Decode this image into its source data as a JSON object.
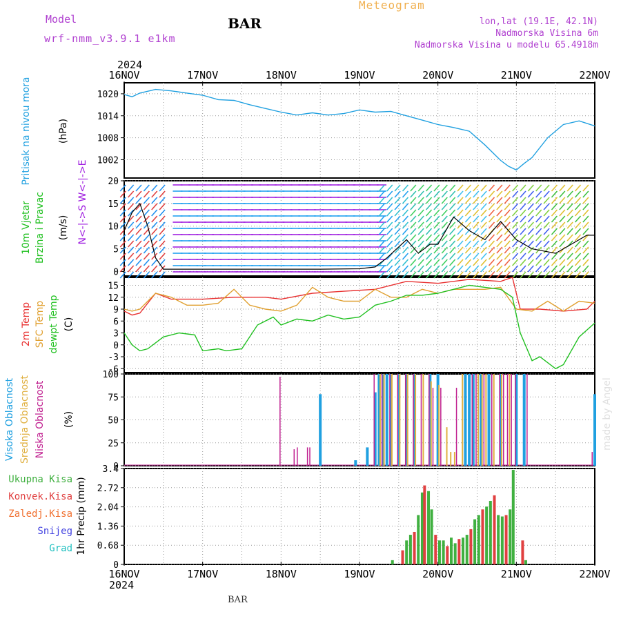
{
  "header": {
    "title": "Meteogram",
    "model_label": "Model",
    "model_name": "wrf-nmm_v3.9.1 e1km",
    "station": "BAR",
    "lonlat": "lon,lat (19.1E, 42.1N)",
    "elevation": "Nadmorska Visina 6m",
    "elevation_model": "Nadmorska Visina u modelu 65.4918m",
    "credit": "made by Angel",
    "footer_station": "BAR"
  },
  "time_axis": {
    "year": "2024",
    "labels": [
      "16NOV",
      "17NOV",
      "18NOV",
      "19NOV",
      "20NOV",
      "21NOV",
      "22NOV"
    ],
    "start_day": 16,
    "end_day": 22
  },
  "colors": {
    "pressure": "#20a0e0",
    "temp": "#e83030",
    "sfc_temp": "#e0a030",
    "dewpt": "#20c020",
    "high_cloud": "#20a0e0",
    "mid_cloud": "#e0b040",
    "low_cloud": "#c02090",
    "precip_total": "#40b040",
    "precip_conv": "#e04040",
    "snow": "#4040e0",
    "hail": "#20c0c0",
    "wind_purple": "#a020e0"
  },
  "panels": {
    "pressure": {
      "label": "Pritisak na nivou mora",
      "unit": "(hPa)",
      "ticks": [
        "1020",
        "1014",
        "1008",
        "1002"
      ]
    },
    "wind": {
      "label1": "10m Vjetar",
      "label2": "Brzina i Pravac",
      "unit": "(m/s)",
      "ticks": [
        "20",
        "15",
        "10",
        "5",
        "0"
      ],
      "compass": "N<-|->S W<-|->E"
    },
    "temp": {
      "label1": "2m Temp",
      "label2": "SFC Temp",
      "label3": "dewpt Temp",
      "unit": "(C)",
      "ticks": [
        "15",
        "12",
        "9",
        "6",
        "3",
        "0",
        "-3",
        "-6"
      ]
    },
    "cloud": {
      "label1": "Visoka Oblacnost",
      "label2": "Srednja Oblacnost",
      "label3": "Niska Oblacnost",
      "unit": "(%)",
      "ticks": [
        "100",
        "75",
        "50",
        "25",
        "0"
      ]
    },
    "precip": {
      "label": "1hr Precip (mm)",
      "ticks": [
        "3.4",
        "2.72",
        "2.04",
        "1.36",
        "0.68",
        "0"
      ],
      "legend": [
        "Ukupna Kisa",
        "Konvek.Kisa",
        "Zaledj.Kisa",
        "Snijeg",
        "Grad"
      ]
    }
  },
  "chart_data": [
    {
      "type": "line",
      "title": "Pritisak na nivou mora",
      "ylabel": "(hPa)",
      "ylim": [
        997,
        1023
      ],
      "x_unit": "day of November 2024",
      "series": [
        {
          "name": "Pritisak na nivou mora",
          "x": [
            16.0,
            16.1,
            16.2,
            16.4,
            16.6,
            16.8,
            17.0,
            17.2,
            17.4,
            17.6,
            17.8,
            18.0,
            18.2,
            18.4,
            18.6,
            18.8,
            19.0,
            19.2,
            19.4,
            19.6,
            19.8,
            20.0,
            20.2,
            20.4,
            20.6,
            20.8,
            20.9,
            21.0,
            21.1,
            21.2,
            21.4,
            21.6,
            21.8,
            22.0
          ],
          "y": [
            1019.8,
            1019.2,
            1020.2,
            1021.2,
            1020.8,
            1020.2,
            1019.6,
            1018.4,
            1018.2,
            1017.0,
            1016.0,
            1015.0,
            1014.2,
            1014.8,
            1014.2,
            1014.6,
            1015.6,
            1015.0,
            1015.2,
            1014.0,
            1012.8,
            1011.6,
            1010.8,
            1009.8,
            1006.0,
            1001.8,
            1000.2,
            999.2,
            1001.0,
            1002.6,
            1008.0,
            1011.6,
            1012.6,
            1011.2
          ]
        }
      ]
    },
    {
      "type": "line",
      "title": "10m Vjetar Brzina i Pravac",
      "ylabel": "(m/s)",
      "ylim": [
        -1,
        20
      ],
      "x_unit": "day of November 2024",
      "series": [
        {
          "name": "10m Vjetar",
          "x": [
            16.0,
            16.1,
            16.2,
            16.3,
            16.4,
            16.5,
            17.0,
            17.5,
            18.0,
            18.5,
            19.0,
            19.2,
            19.35,
            19.6,
            19.75,
            19.9,
            20.0,
            20.2,
            20.4,
            20.6,
            20.8,
            21.0,
            21.2,
            21.5,
            21.7,
            21.9,
            22.0
          ],
          "y": [
            9,
            13,
            15,
            10,
            3,
            0.5,
            0.5,
            0.5,
            0.5,
            0.5,
            0.6,
            1,
            3,
            7,
            4,
            6,
            6,
            12,
            9,
            7,
            11,
            7,
            5,
            4,
            6,
            8,
            8
          ]
        }
      ]
    },
    {
      "type": "line",
      "title": "2m Temp / SFC Temp / dewpt Temp",
      "ylabel": "(C)",
      "ylim": [
        -7,
        17
      ],
      "x_unit": "day of November 2024",
      "series": [
        {
          "name": "2m Temp",
          "x": [
            16.0,
            16.1,
            16.2,
            16.4,
            16.6,
            17.0,
            17.4,
            17.8,
            18.0,
            18.4,
            18.8,
            19.2,
            19.6,
            20.0,
            20.4,
            20.8,
            20.95,
            21.05,
            21.3,
            21.6,
            21.9,
            22.0
          ],
          "y": [
            8.5,
            7.5,
            8,
            13,
            11.5,
            11.5,
            12,
            12,
            11.5,
            13,
            13.5,
            14,
            16,
            15.5,
            16.5,
            16,
            17,
            9,
            9,
            8.5,
            9,
            11
          ]
        },
        {
          "name": "SFC Temp",
          "x": [
            16.0,
            16.1,
            16.2,
            16.4,
            16.6,
            16.8,
            17.0,
            17.2,
            17.4,
            17.6,
            17.8,
            18.0,
            18.2,
            18.4,
            18.6,
            18.8,
            19.0,
            19.2,
            19.4,
            19.6,
            19.8,
            20.0,
            20.2,
            20.4,
            20.6,
            20.8,
            21.0,
            21.2,
            21.4,
            21.6,
            21.8,
            22.0
          ],
          "y": [
            9,
            8.5,
            9,
            13,
            12,
            10,
            10,
            10.5,
            14,
            10,
            9,
            8.5,
            10,
            14.5,
            12,
            11,
            11,
            14,
            12,
            12,
            14,
            13,
            14,
            14,
            14,
            14.5,
            9,
            8.5,
            11,
            8.5,
            11,
            10.5
          ]
        },
        {
          "name": "dewpt Temp",
          "x": [
            16.0,
            16.1,
            16.2,
            16.3,
            16.5,
            16.7,
            16.9,
            17.0,
            17.2,
            17.3,
            17.5,
            17.7,
            17.9,
            18.0,
            18.2,
            18.4,
            18.6,
            18.8,
            19.0,
            19.2,
            19.4,
            19.6,
            19.8,
            20.0,
            20.2,
            20.4,
            20.6,
            20.8,
            20.95,
            21.05,
            21.2,
            21.3,
            21.5,
            21.6,
            21.8,
            22.0
          ],
          "y": [
            3,
            0,
            -1.5,
            -1,
            2,
            3,
            2.5,
            -1.5,
            -1,
            -1.5,
            -1,
            5,
            7,
            5,
            6.5,
            6,
            7.5,
            6.5,
            7,
            10,
            11,
            12.5,
            12.5,
            13,
            14,
            15,
            14.5,
            14,
            12,
            3,
            -4,
            -3,
            -6,
            -5,
            2,
            5.5
          ]
        }
      ]
    },
    {
      "type": "bar",
      "title": "Oblacnost",
      "ylabel": "(%)",
      "ylim": [
        0,
        100
      ],
      "x_unit": "day of November 2024",
      "series": [
        {
          "name": "Visoka Oblacnost",
          "x": [
            18.5,
            18.95,
            19.1,
            19.2,
            19.25,
            19.3,
            19.35,
            19.4,
            19.5,
            19.6,
            19.7,
            19.9,
            20.0,
            20.35,
            20.4,
            20.45,
            20.55,
            20.65,
            20.8,
            21.0,
            21.1,
            22.0
          ],
          "y": [
            78,
            6,
            20,
            80,
            100,
            100,
            100,
            100,
            100,
            100,
            100,
            100,
            100,
            100,
            100,
            100,
            100,
            100,
            100,
            100,
            100,
            78
          ]
        },
        {
          "name": "Srednja Oblacnost",
          "x": [
            19.25,
            19.3,
            19.4,
            19.5,
            19.6,
            19.7,
            19.8,
            19.9,
            20.0,
            20.1,
            20.15,
            20.2,
            20.3,
            20.5,
            20.55,
            20.6,
            20.7,
            20.8,
            20.9
          ],
          "y": [
            100,
            100,
            100,
            100,
            100,
            100,
            100,
            92,
            88,
            42,
            15,
            15,
            100,
            100,
            100,
            100,
            100,
            100,
            100
          ]
        },
        {
          "name": "Niska Oblacnost",
          "x": [
            18.0,
            18.18,
            18.22,
            18.35,
            18.38,
            19.2,
            19.3,
            19.4,
            19.5,
            19.6,
            19.7,
            19.8,
            19.9,
            19.95,
            20.05,
            20.25,
            20.45,
            20.5,
            20.6,
            20.7,
            20.8,
            20.85,
            20.9,
            20.95,
            21.0,
            21.15,
            21.98
          ],
          "y": [
            97,
            18,
            20,
            20,
            20,
            100,
            100,
            100,
            100,
            100,
            100,
            100,
            100,
            85,
            85,
            85,
            100,
            100,
            100,
            100,
            100,
            100,
            100,
            100,
            100,
            100,
            15
          ]
        }
      ]
    },
    {
      "type": "bar",
      "title": "1hr Precip",
      "ylabel": "1hr Precip (mm)",
      "ylim": [
        0,
        3.4
      ],
      "x_unit": "day of November 2024",
      "series": [
        {
          "name": "Ukupna Kisa",
          "x": [
            19.42,
            19.55,
            19.6,
            19.65,
            19.7,
            19.75,
            19.8,
            19.83,
            19.88,
            19.92,
            19.97,
            20.02,
            20.07,
            20.12,
            20.17,
            20.22,
            20.27,
            20.32,
            20.37,
            20.42,
            20.47,
            20.52,
            20.57,
            20.62,
            20.67,
            20.72,
            20.77,
            20.82,
            20.87,
            20.92,
            20.96,
            21.08,
            21.12
          ],
          "y": [
            0.15,
            0.5,
            0.85,
            1.05,
            1.15,
            1.75,
            2.55,
            2.8,
            2.6,
            1.95,
            1.05,
            0.85,
            0.85,
            0.65,
            0.95,
            0.75,
            0.9,
            0.95,
            1.05,
            1.25,
            1.6,
            1.75,
            1.95,
            2.05,
            2.25,
            2.45,
            1.75,
            1.7,
            1.75,
            1.95,
            3.35,
            0.85,
            0.15
          ]
        }
      ]
    }
  ]
}
